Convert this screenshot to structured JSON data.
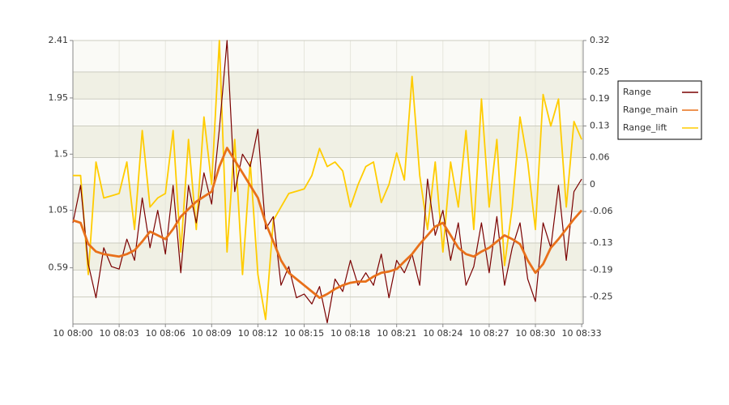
{
  "chart_data": {
    "type": "line",
    "x": [
      0,
      0.5,
      1,
      1.5,
      2,
      2.5,
      3,
      3.5,
      4,
      4.5,
      5,
      5.5,
      6,
      6.5,
      7,
      7.5,
      8,
      8.5,
      9,
      9.5,
      10,
      10.5,
      11,
      11.5,
      12,
      12.5,
      13,
      13.5,
      14,
      14.5,
      15,
      15.5,
      16,
      16.5,
      17,
      17.5,
      18,
      18.5,
      19,
      19.5,
      20,
      20.5,
      21,
      21.5,
      22,
      22.5,
      23,
      23.5,
      24,
      24.5,
      25,
      25.5,
      26,
      26.5,
      27,
      27.5,
      28,
      28.5,
      29,
      29.5,
      30,
      30.5,
      31,
      31.5,
      32,
      32.5,
      33
    ],
    "xlim": [
      0,
      33.1
    ],
    "xticks": [
      {
        "value": 0,
        "label": "10 08:00"
      },
      {
        "value": 3,
        "label": "10 08:03"
      },
      {
        "value": 6,
        "label": "10 08:06"
      },
      {
        "value": 9,
        "label": "10 08:09"
      },
      {
        "value": 12,
        "label": "10 08:12"
      },
      {
        "value": 15,
        "label": "10 08:15"
      },
      {
        "value": 18,
        "label": "10 08:18"
      },
      {
        "value": 21,
        "label": "10 08:21"
      },
      {
        "value": 24,
        "label": "10 08:24"
      },
      {
        "value": 27,
        "label": "10 08:27"
      },
      {
        "value": 30,
        "label": "10 08:30"
      },
      {
        "value": 33,
        "label": "10 08:33"
      }
    ],
    "ylim": [
      0.14,
      2.41
    ],
    "yticks": [
      0.59,
      1.05,
      1.5,
      1.95,
      2.41
    ],
    "y2lim": [
      -0.31,
      0.32
    ],
    "y2ticks": [
      -0.25,
      -0.19,
      -0.13,
      -0.06,
      0,
      0.06,
      0.13,
      0.19,
      0.25,
      0.32
    ],
    "legend": "right",
    "series": [
      {
        "name": "Range",
        "color": "#7a0000",
        "values": [
          0.95,
          1.25,
          0.62,
          0.35,
          0.75,
          0.6,
          0.58,
          0.82,
          0.65,
          1.15,
          0.75,
          1.05,
          0.7,
          1.25,
          0.55,
          1.25,
          0.95,
          1.35,
          1.1,
          1.7,
          2.41,
          1.2,
          1.5,
          1.4,
          1.7,
          0.9,
          1.0,
          0.45,
          0.6,
          0.35,
          0.38,
          0.3,
          0.44,
          0.15,
          0.5,
          0.4,
          0.65,
          0.45,
          0.55,
          0.45,
          0.7,
          0.35,
          0.65,
          0.55,
          0.7,
          0.45,
          1.3,
          0.85,
          1.05,
          0.65,
          0.95,
          0.45,
          0.6,
          0.95,
          0.55,
          1.0,
          0.45,
          0.75,
          0.95,
          0.5,
          0.32,
          0.95,
          0.75,
          1.25,
          0.65,
          1.2,
          1.3
        ]
      },
      {
        "name": "Range_main",
        "color": "#e8701a",
        "values": [
          0.97,
          0.95,
          0.78,
          0.72,
          0.7,
          0.69,
          0.68,
          0.7,
          0.73,
          0.8,
          0.88,
          0.85,
          0.82,
          0.9,
          1.0,
          1.06,
          1.12,
          1.16,
          1.2,
          1.4,
          1.55,
          1.45,
          1.35,
          1.25,
          1.15,
          0.95,
          0.8,
          0.65,
          0.55,
          0.5,
          0.45,
          0.4,
          0.35,
          0.38,
          0.42,
          0.45,
          0.47,
          0.48,
          0.48,
          0.52,
          0.55,
          0.56,
          0.58,
          0.64,
          0.7,
          0.78,
          0.85,
          0.92,
          0.95,
          0.85,
          0.75,
          0.7,
          0.68,
          0.72,
          0.75,
          0.8,
          0.85,
          0.82,
          0.78,
          0.65,
          0.55,
          0.62,
          0.75,
          0.82,
          0.9,
          0.98,
          1.05
        ]
      },
      {
        "name": "Range_lift",
        "color": "#ffcc00",
        "axis": "y2",
        "values": [
          0.02,
          0.02,
          -0.2,
          0.05,
          -0.03,
          -0.025,
          -0.02,
          0.05,
          -0.1,
          0.12,
          -0.05,
          -0.03,
          -0.02,
          0.12,
          -0.15,
          0.1,
          -0.1,
          0.15,
          0.0,
          0.32,
          -0.15,
          0.1,
          -0.2,
          0.05,
          -0.2,
          -0.3,
          -0.08,
          -0.05,
          -0.02,
          -0.015,
          -0.01,
          0.02,
          0.08,
          0.04,
          0.05,
          0.03,
          -0.05,
          0.0,
          0.04,
          0.05,
          -0.04,
          0.0,
          0.07,
          0.01,
          0.24,
          0.02,
          -0.1,
          0.05,
          -0.15,
          0.05,
          -0.05,
          0.12,
          -0.1,
          0.19,
          -0.05,
          0.1,
          -0.18,
          -0.05,
          0.15,
          0.05,
          -0.1,
          0.2,
          0.13,
          0.19,
          -0.05,
          0.14,
          0.1
        ]
      }
    ]
  }
}
